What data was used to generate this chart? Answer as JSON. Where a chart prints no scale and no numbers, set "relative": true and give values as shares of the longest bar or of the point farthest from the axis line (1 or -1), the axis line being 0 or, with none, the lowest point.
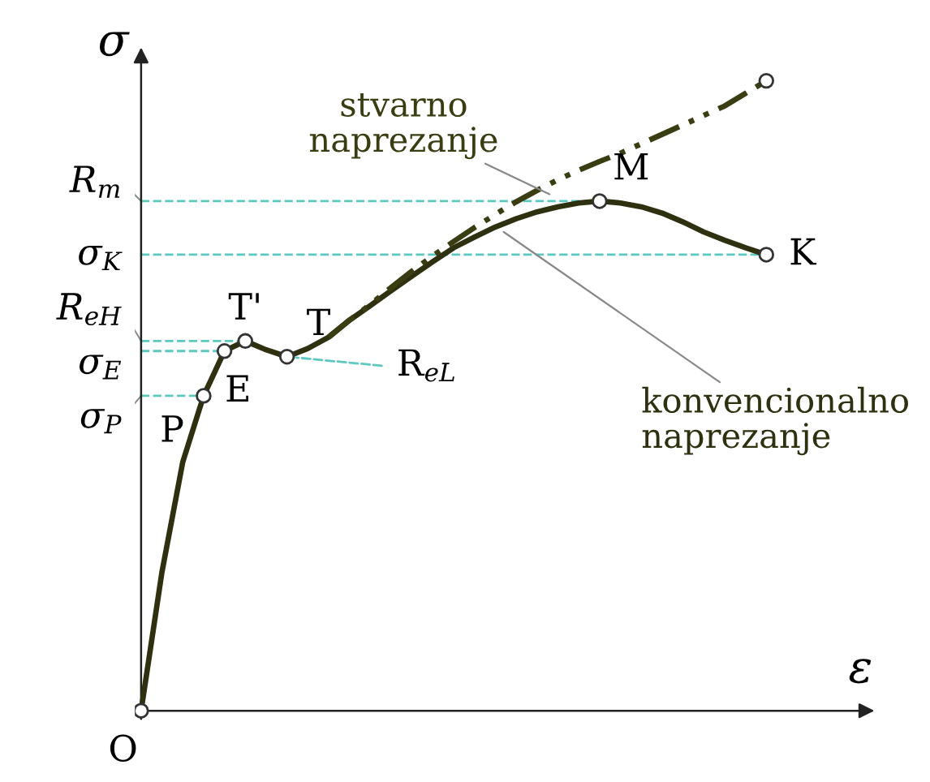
{
  "chart_data": {
    "type": "line",
    "relative": true,
    "xlabel": "ε",
    "ylabel": "σ",
    "legend": false,
    "marker": "none",
    "categories": [
      null,
      null,
      null,
      null,
      null,
      null,
      null,
      null,
      null,
      null,
      null,
      null,
      null,
      null,
      null,
      null,
      null,
      null,
      null,
      null,
      null,
      null,
      null,
      null,
      null,
      null,
      null,
      null,
      null,
      null,
      null
    ],
    "series": [
      {
        "name": "konvencionalno\nnaprezanje",
        "color": "#2e3010",
        "line_style": "solid",
        "values": [
          0,
          0.22,
          0.395,
          0.5,
          0.571,
          0.587,
          0.573,
          0.562,
          0.575,
          0.593,
          0.62,
          0.643,
          0.667,
          0.69,
          0.713,
          0.735,
          0.752,
          0.768,
          0.781,
          0.792,
          0.8,
          0.806,
          0.809,
          0.806,
          0.8,
          0.79,
          0.776,
          0.76,
          0.747,
          0.735,
          0.724
        ]
      },
      {
        "name": "stvarno\nnaprezanje",
        "color": "#3a3c12",
        "line_style": "dashdotdot",
        "values": [
          null,
          null,
          null,
          null,
          null,
          null,
          null,
          null,
          null,
          0.593,
          0.62,
          0.645,
          0.672,
          0.698,
          0.722,
          0.745,
          0.767,
          0.788,
          0.808,
          0.826,
          0.843,
          0.858,
          0.872,
          0.885,
          0.9,
          0.915,
          0.93,
          0.945,
          0.96,
          0.98,
          1.0
        ]
      }
    ],
    "ref_lines": [
      {
        "axis": "y",
        "value": 0.809,
        "label": "R$_{m}$",
        "color": "#5cc8c0",
        "line_style": "dashed"
      },
      {
        "axis": "y",
        "value": 0.724,
        "label": "σ$_{K}$",
        "color": "#5cc8c0",
        "line_style": "dashed"
      },
      {
        "axis": "y",
        "value": 0.587,
        "label": "R$_{eH}$",
        "color": "#5cc8c0",
        "line_style": "dashed"
      },
      {
        "axis": "y",
        "value": 0.571,
        "label": "σ$_{E}$",
        "color": "#5cc8c0",
        "line_style": "dashed"
      },
      {
        "axis": "y",
        "value": 0.5,
        "label": "σ$_{P}$",
        "color": "#5cc8c0",
        "line_style": "dashed"
      }
    ],
    "annotations": [
      "O",
      "P",
      "E",
      "T'",
      "T",
      "R$_{eL}$",
      "M",
      "K"
    ]
  }
}
